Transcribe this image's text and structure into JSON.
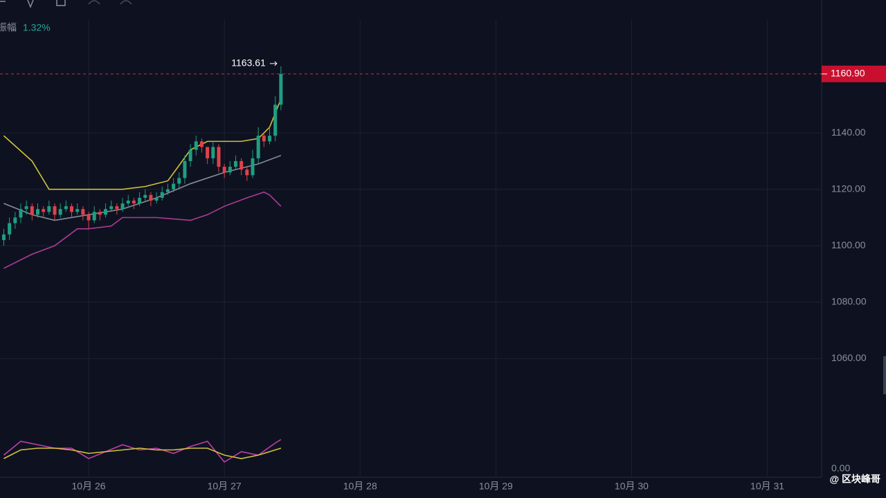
{
  "chart_data": {
    "type": "candlestick",
    "amplitude_label": "振幅",
    "amplitude": {
      "value": 1.32,
      "label": "1.32%"
    },
    "watermark": "@ 区块峰哥",
    "up_color": "#1f9e80",
    "down_color": "#e0414b",
    "xlim": [
      -15.67,
      129.6
    ],
    "xticks": [
      {
        "value": 0,
        "label": "10月 26"
      },
      {
        "value": 24,
        "label": "10月 27"
      },
      {
        "value": 48,
        "label": "10月 28"
      },
      {
        "value": 72,
        "label": "10月 29"
      },
      {
        "value": 96,
        "label": "10月 30"
      },
      {
        "value": 120,
        "label": "10月 31"
      }
    ],
    "ylim": [
      1040,
      1180
    ],
    "yticks": [
      {
        "value": 1060,
        "label": "1060.00"
      },
      {
        "value": 1080,
        "label": "1080.00"
      },
      {
        "value": 1100,
        "label": "1100.00"
      },
      {
        "value": 1120,
        "label": "1120.00"
      },
      {
        "value": 1140,
        "label": "1140.00"
      }
    ],
    "grid": true,
    "last_price": {
      "value": 1160.9,
      "label": "1160.90"
    },
    "high_label": {
      "value": 1163.61,
      "label": "1163.61"
    },
    "x": [
      -15,
      -14,
      -13,
      -12,
      -11,
      -10,
      -9,
      -8,
      -7,
      -6,
      -5,
      -4,
      -3,
      -2,
      -1,
      0,
      1,
      2,
      3,
      4,
      5,
      6,
      7,
      8,
      9,
      10,
      11,
      12,
      13,
      14,
      15,
      16,
      17,
      18,
      19,
      20,
      21,
      22,
      23,
      24,
      25,
      26,
      27,
      28,
      29,
      30,
      31,
      32,
      33,
      34
    ],
    "open": [
      1102,
      1104,
      1108,
      1110,
      1113,
      1114,
      1111,
      1113,
      1112,
      1114,
      1111,
      1113,
      1114,
      1112,
      1113,
      1111,
      1109,
      1112,
      1111,
      1113,
      1114,
      1113,
      1115,
      1116,
      1115,
      1117,
      1118,
      1116,
      1117,
      1119,
      1120,
      1122,
      1124,
      1130,
      1134,
      1137,
      1135,
      1131,
      1135,
      1128,
      1126,
      1128,
      1130,
      1127,
      1125,
      1131,
      1139,
      1137,
      1139,
      1150
    ],
    "close": [
      1104,
      1108,
      1110,
      1113,
      1114,
      1111,
      1113,
      1112,
      1114,
      1111,
      1113,
      1114,
      1112,
      1113,
      1111,
      1109,
      1112,
      1111,
      1113,
      1114,
      1113,
      1115,
      1116,
      1115,
      1117,
      1118,
      1116,
      1117,
      1119,
      1120,
      1122,
      1124,
      1130,
      1134,
      1137,
      1135,
      1131,
      1135,
      1128,
      1126,
      1128,
      1130,
      1127,
      1125,
      1131,
      1139,
      1137,
      1139,
      1150,
      1160.9
    ],
    "high": [
      1106,
      1110,
      1112,
      1115,
      1116,
      1115,
      1115,
      1114,
      1116,
      1115,
      1115,
      1116,
      1115,
      1115,
      1114,
      1112,
      1114,
      1113,
      1115,
      1116,
      1115,
      1117,
      1118,
      1117,
      1119,
      1120,
      1119,
      1119,
      1121,
      1122,
      1124,
      1126,
      1132,
      1136,
      1139,
      1138,
      1134,
      1137,
      1136,
      1129,
      1130,
      1132,
      1131,
      1128,
      1134,
      1142,
      1140,
      1142,
      1153,
      1163.61
    ],
    "low": [
      1100,
      1102,
      1106,
      1108,
      1111,
      1109,
      1110,
      1110,
      1111,
      1109,
      1110,
      1112,
      1110,
      1111,
      1109,
      1106,
      1108,
      1109,
      1110,
      1112,
      1111,
      1112,
      1114,
      1113,
      1114,
      1116,
      1114,
      1115,
      1116,
      1118,
      1119,
      1120,
      1122,
      1128,
      1132,
      1133,
      1129,
      1129,
      1126,
      1124,
      1125,
      1127,
      1125,
      1123,
      1124,
      1129,
      1135,
      1136,
      1137,
      1148
    ],
    "ma_lines": [
      {
        "color": "#d4c23a",
        "x": [
          -15,
          -10,
          -7,
          -4,
          0,
          3,
          6,
          10,
          14,
          18,
          21,
          24,
          27,
          30,
          32,
          34
        ],
        "values": [
          1139,
          1130,
          1120,
          1120,
          1120,
          1120,
          1120,
          1121,
          1123,
          1134,
          1137,
          1137,
          1137,
          1138,
          1142,
          1152
        ]
      },
      {
        "color": "#8a8c99",
        "x": [
          -15,
          -10,
          -6,
          0,
          6,
          12,
          18,
          24,
          30,
          34
        ],
        "values": [
          1115,
          1111,
          1109,
          1111,
          1113,
          1117,
          1122,
          1126,
          1129,
          1132
        ]
      },
      {
        "color": "#b03a9a",
        "x": [
          -15,
          -10,
          -6,
          -2,
          0,
          4,
          6,
          12,
          18,
          21,
          24,
          28,
          31,
          32,
          34
        ],
        "values": [
          1092,
          1097,
          1100,
          1106,
          1106,
          1107,
          1110,
          1110,
          1109,
          1111,
          1114,
          1117,
          1119,
          1118,
          1114
        ]
      }
    ],
    "indicator": {
      "y3lim": [
        -24,
        156
      ],
      "y3ticks": [
        {
          "value": 0,
          "label": "0.00"
        }
      ],
      "lines": [
        {
          "color": "#c43cb0",
          "x": [
            -15,
            -12,
            -9,
            -6,
            -3,
            0,
            3,
            6,
            9,
            12,
            15,
            18,
            21,
            24,
            27,
            30,
            33,
            34
          ],
          "values": [
            40,
            80,
            70,
            60,
            60,
            30,
            50,
            70,
            55,
            60,
            45,
            65,
            80,
            20,
            50,
            40,
            75,
            85
          ]
        },
        {
          "color": "#d4c23a",
          "x": [
            -15,
            -12,
            -9,
            -6,
            -3,
            0,
            3,
            6,
            9,
            12,
            15,
            18,
            21,
            24,
            27,
            30,
            33,
            34
          ],
          "values": [
            30,
            55,
            60,
            60,
            55,
            45,
            50,
            55,
            60,
            55,
            55,
            60,
            60,
            40,
            30,
            40,
            55,
            60
          ]
        }
      ]
    }
  }
}
